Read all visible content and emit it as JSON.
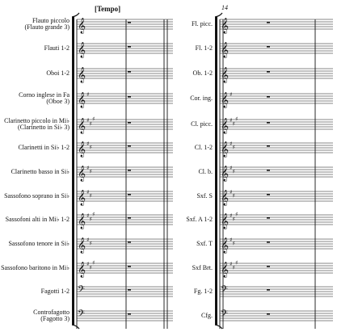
{
  "header": {
    "tempo": "[Tempo]",
    "measure_number": "14"
  },
  "left_system": {
    "instruments": [
      {
        "name": [
          "Flauto piccolo",
          "(Flauto grande 3)"
        ],
        "clef": "treble",
        "sharps": 0
      },
      {
        "name": [
          "Flauti 1-2"
        ],
        "clef": "treble",
        "sharps": 0
      },
      {
        "name": [
          "Oboi 1-2"
        ],
        "clef": "treble",
        "sharps": 0
      },
      {
        "name": [
          "Corno inglese in Fa",
          "(Oboe 3)"
        ],
        "clef": "treble",
        "sharps": 1
      },
      {
        "name": [
          "Clarinetto piccolo in Mi♭",
          "(Clarinetto in Si♭ 3)"
        ],
        "clef": "treble",
        "sharps": 3
      },
      {
        "name": [
          "Clarinetti in Si♭ 1-2"
        ],
        "clef": "treble",
        "sharps": 2
      },
      {
        "name": [
          "Clarinetto basso in Si♭"
        ],
        "clef": "treble",
        "sharps": 2
      },
      {
        "name": [
          "Sassofono soprano in Si♭"
        ],
        "clef": "treble",
        "sharps": 2
      },
      {
        "name": [
          "Sassofoni alti in Mi♭ 1-2"
        ],
        "clef": "treble",
        "sharps": 3
      },
      {
        "name": [
          "Sassofono tenore in Si♭"
        ],
        "clef": "treble",
        "sharps": 2
      },
      {
        "name": [
          "Sassofono baritono in Mi♭"
        ],
        "clef": "treble",
        "sharps": 3
      },
      {
        "name": [
          "Fagotti 1-2"
        ],
        "clef": "bass",
        "sharps": 0
      },
      {
        "name": [
          "Controfagotto",
          "(Fagotto 3)"
        ],
        "clef": "bass",
        "sharps": 0
      }
    ]
  },
  "right_system": {
    "instruments": [
      {
        "name": [
          "Fl. picc."
        ],
        "clef": "treble",
        "sharps": 0
      },
      {
        "name": [
          "Fl. 1-2"
        ],
        "clef": "treble",
        "sharps": 0
      },
      {
        "name": [
          "Ob. 1-2"
        ],
        "clef": "treble",
        "sharps": 0
      },
      {
        "name": [
          "Cor. ing."
        ],
        "clef": "treble",
        "sharps": 1
      },
      {
        "name": [
          "Cl. picc."
        ],
        "clef": "treble",
        "sharps": 3
      },
      {
        "name": [
          "Cl. 1-2"
        ],
        "clef": "treble",
        "sharps": 2
      },
      {
        "name": [
          "Cl. b."
        ],
        "clef": "treble",
        "sharps": 2
      },
      {
        "name": [
          "Sxf. S"
        ],
        "clef": "treble",
        "sharps": 2
      },
      {
        "name": [
          "Sxf. A 1-2"
        ],
        "clef": "treble",
        "sharps": 3
      },
      {
        "name": [
          "Sxf. T"
        ],
        "clef": "treble",
        "sharps": 2
      },
      {
        "name": [
          "Sxf Brt."
        ],
        "clef": "treble",
        "sharps": 3
      },
      {
        "name": [
          "Fg. 1-2"
        ],
        "clef": "bass",
        "sharps": 0
      },
      {
        "name": [
          "Cfg."
        ],
        "clef": "bass",
        "sharps": 0
      }
    ]
  },
  "rest_symbol": "whole-rest",
  "colors": {
    "ink": "#111111",
    "paper": "#ffffff"
  }
}
